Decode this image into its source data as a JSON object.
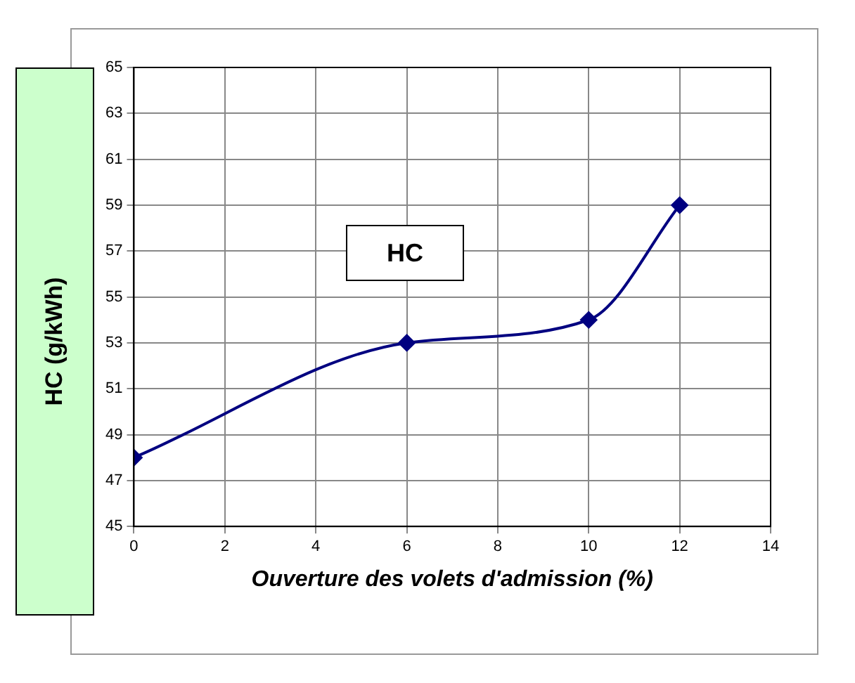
{
  "chart_data": {
    "type": "line",
    "xlabel": "Ouverture des volets d'admission (%)",
    "ylabel": "HC (g/kWh)",
    "annotations": [
      "HC"
    ],
    "x": [
      0,
      6,
      10,
      12
    ],
    "series": [
      {
        "color": "#000080",
        "values": [
          48,
          53,
          54,
          59
        ]
      }
    ],
    "xlim": [
      0,
      14
    ],
    "xticks": [
      0,
      2,
      4,
      6,
      8,
      10,
      12,
      14
    ],
    "ylim": [
      45,
      65
    ],
    "yticks": [
      45,
      47,
      49,
      51,
      53,
      55,
      57,
      59,
      61,
      63,
      65
    ],
    "grid": true,
    "marker": "diamond",
    "line_style": "solid",
    "legend": false
  }
}
